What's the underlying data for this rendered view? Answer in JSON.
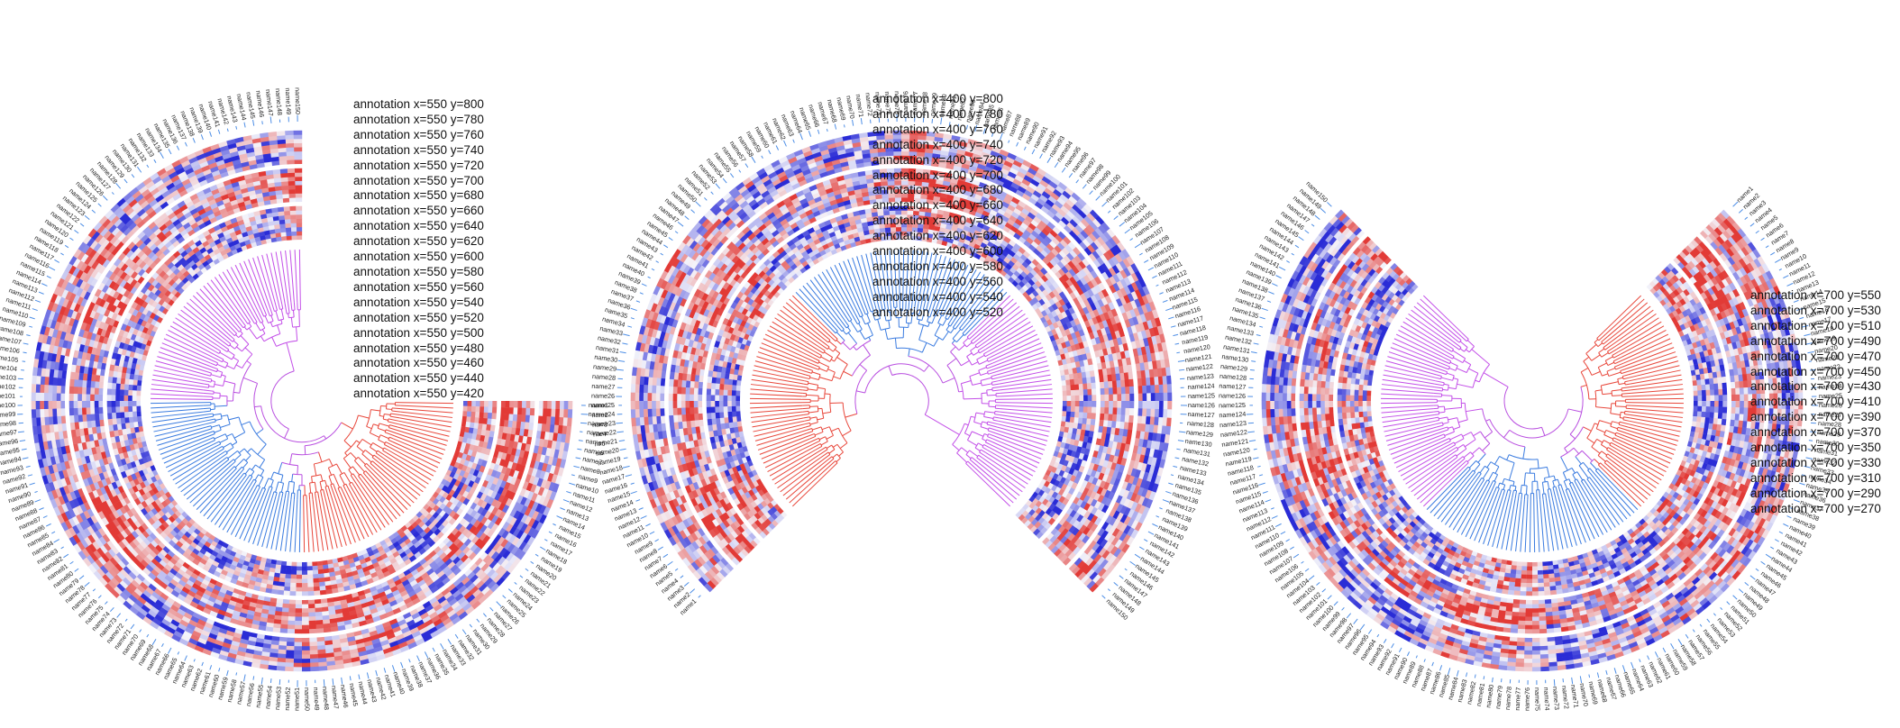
{
  "colors": {
    "cluster_purple": "#c34fe8",
    "cluster_blue": "#3a7be0",
    "cluster_red": "#e8473b",
    "connector_magenta": "#b94fe0",
    "heat_low": "#2a2cd6",
    "heat_mid": "#f4f4fa",
    "heat_high": "#e23a36",
    "annotation_bar": "#4d8ee6",
    "label_text": "#222222"
  },
  "label_prefix": "name",
  "panels": [
    {
      "id": "gap-top-right",
      "annotations": [
        "annotation x=550 y=800",
        "annotation x=550 y=780",
        "annotation x=550 y=760",
        "annotation x=550 y=740",
        "annotation x=550 y=720",
        "annotation x=550 y=700",
        "annotation x=550 y=680",
        "annotation x=550 y=660",
        "annotation x=550 y=640",
        "annotation x=550 y=620",
        "annotation x=550 y=600",
        "annotation x=550 y=580",
        "annotation x=550 y=560",
        "annotation x=550 y=540",
        "annotation x=550 y=520",
        "annotation x=550 y=500",
        "annotation x=550 y=480",
        "annotation x=550 y=460",
        "annotation x=550 y=440",
        "annotation x=550 y=420"
      ],
      "leaf_labels": [
        "name1",
        "name2",
        "name3",
        "name4",
        "name5",
        "name6",
        "name7",
        "name8",
        "name9",
        "name10",
        "name11",
        "name12",
        "name13",
        "name14",
        "name15",
        "name16",
        "name17",
        "name18",
        "name19",
        "name20",
        "name21",
        "name22",
        "name23",
        "name24",
        "name25",
        "name26",
        "name27",
        "name28",
        "name29",
        "name30",
        "name31",
        "name32",
        "name33",
        "name34",
        "name35",
        "name36",
        "name37",
        "name38",
        "name39",
        "name40",
        "name41",
        "name42",
        "name43",
        "name44",
        "name45",
        "name46",
        "name47",
        "name48",
        "name49",
        "name50",
        "name51",
        "name52",
        "name53",
        "name54",
        "name55",
        "name56",
        "name57",
        "name58",
        "name59",
        "name60",
        "name61",
        "name62",
        "name63",
        "name64",
        "name65",
        "name66",
        "name67",
        "name68",
        "name69",
        "name70",
        "name71",
        "name72",
        "name73",
        "name74",
        "name75",
        "name76",
        "name77",
        "name78",
        "name79",
        "name80",
        "name81",
        "name82",
        "name83",
        "name84",
        "name85",
        "name86",
        "name87",
        "name88",
        "name89",
        "name90",
        "name91",
        "name92",
        "name93",
        "name94",
        "name95",
        "name96",
        "name97",
        "name98",
        "name99",
        "name100",
        "name101",
        "name102",
        "name103",
        "name104",
        "name105",
        "name106",
        "name107",
        "name108",
        "name109",
        "name110",
        "name111",
        "name112",
        "name113",
        "name114",
        "name115",
        "name116",
        "name117",
        "name118",
        "name119",
        "name120",
        "name121",
        "name122",
        "name123",
        "name124",
        "name125",
        "name126",
        "name127",
        "name128",
        "name129",
        "name130",
        "name131",
        "name132",
        "name133",
        "name134",
        "name135",
        "name136",
        "name137",
        "name138",
        "name139",
        "name140",
        "name141",
        "name142",
        "name143",
        "name144",
        "name145",
        "name146",
        "name147",
        "name148",
        "name149",
        "name150"
      ]
    },
    {
      "id": "gap-top",
      "annotations": [
        "annotation x=400 y=800",
        "annotation x=400 y=780",
        "annotation x=400 y=760",
        "annotation x=400 y=740",
        "annotation x=400 y=720",
        "annotation x=400 y=700",
        "annotation x=400 y=680",
        "annotation x=400 y=660",
        "annotation x=400 y=640",
        "annotation x=400 y=620",
        "annotation x=400 y=600",
        "annotation x=400 y=580",
        "annotation x=400 y=560",
        "annotation x=400 y=540",
        "annotation x=400 y=520"
      ],
      "leaf_labels": [
        "name1",
        "name2",
        "name3",
        "name4",
        "name5",
        "name6",
        "name7",
        "name8",
        "name9",
        "name10",
        "name11",
        "name12",
        "name13",
        "name14",
        "name15",
        "name16",
        "name17",
        "name18",
        "name19",
        "name20",
        "name21",
        "name22",
        "name23",
        "name24",
        "name25",
        "name26",
        "name27",
        "name28",
        "name29",
        "name30",
        "name31",
        "name32",
        "name33",
        "name34",
        "name35",
        "name36",
        "name37",
        "name38",
        "name39",
        "name40",
        "name41",
        "name42",
        "name43",
        "name44",
        "name45",
        "name46",
        "name47",
        "name48",
        "name49",
        "name50",
        "name51",
        "name52",
        "name53",
        "name54",
        "name55",
        "name56",
        "name57",
        "name58",
        "name59",
        "name60",
        "name61",
        "name62",
        "name63",
        "name64",
        "name65",
        "name66",
        "name67",
        "name68",
        "name69",
        "name70",
        "name71",
        "name72",
        "name73",
        "name74",
        "name75",
        "name76",
        "name77",
        "name78",
        "name79",
        "name80",
        "name81",
        "name82",
        "name83",
        "name84",
        "name85",
        "name86",
        "name87",
        "name88",
        "name89",
        "name90",
        "name91",
        "name92",
        "name93",
        "name94",
        "name95",
        "name96",
        "name97",
        "name98",
        "name99",
        "name100",
        "name101",
        "name102",
        "name103",
        "name104",
        "name105",
        "name106",
        "name107",
        "name108",
        "name109",
        "name110",
        "name111",
        "name112",
        "name113",
        "name114",
        "name115",
        "name116",
        "name117",
        "name118",
        "name119",
        "name120",
        "name121",
        "name122",
        "name123",
        "name124",
        "name125",
        "name126",
        "name127",
        "name128",
        "name129",
        "name130",
        "name131",
        "name132",
        "name133",
        "name134",
        "name135",
        "name136",
        "name137",
        "name138",
        "name139",
        "name140",
        "name141",
        "name142",
        "name143",
        "name144",
        "name145",
        "name146",
        "name147",
        "name148",
        "name149",
        "name150"
      ]
    },
    {
      "id": "gap-right",
      "annotations": [
        "annotation x=700 y=550",
        "annotation x=700 y=530",
        "annotation x=700 y=510",
        "annotation x=700 y=490",
        "annotation x=700 y=470",
        "annotation x=700 y=450",
        "annotation x=700 y=430",
        "annotation x=700 y=410",
        "annotation x=700 y=390",
        "annotation x=700 y=370",
        "annotation x=700 y=350",
        "annotation x=700 y=330",
        "annotation x=700 y=310",
        "annotation x=700 y=290",
        "annotation x=700 y=270"
      ],
      "leaf_labels": [
        "name1",
        "name2",
        "name3",
        "name4",
        "name5",
        "name6",
        "name7",
        "name8",
        "name9",
        "name10",
        "name11",
        "name12",
        "name13",
        "name14",
        "name15",
        "name16",
        "name17",
        "name18",
        "name19",
        "name20",
        "name21",
        "name22",
        "name23",
        "name24",
        "name25",
        "name26",
        "name27",
        "name28",
        "name29",
        "name30",
        "name31",
        "name32",
        "name33",
        "name34",
        "name35",
        "name36",
        "name37",
        "name38",
        "name39",
        "name40",
        "name41",
        "name42",
        "name43",
        "name44",
        "name45",
        "name46",
        "name47",
        "name48",
        "name49",
        "name50",
        "name51",
        "name52",
        "name53",
        "name54",
        "name55",
        "name56",
        "name57",
        "name58",
        "name59",
        "name60",
        "name61",
        "name62",
        "name63",
        "name64",
        "name65",
        "name66",
        "name67",
        "name68",
        "name69",
        "name70",
        "name71",
        "name72",
        "name73",
        "name74",
        "name75",
        "name76",
        "name77",
        "name78",
        "name79",
        "name80",
        "name81",
        "name82",
        "name83",
        "name84",
        "name85",
        "name86",
        "name87",
        "name88",
        "name89",
        "name90",
        "name91",
        "name92",
        "name93",
        "name94",
        "name95",
        "name96",
        "name97",
        "name98",
        "name99",
        "name100",
        "name101",
        "name102",
        "name103",
        "name104",
        "name105",
        "name106",
        "name107",
        "name108",
        "name109",
        "name110",
        "name111",
        "name112",
        "name113",
        "name114",
        "name115",
        "name116",
        "name117",
        "name118",
        "name119",
        "name120",
        "name121",
        "name122",
        "name123",
        "name124",
        "name125",
        "name126",
        "name127",
        "name128",
        "name129",
        "name130",
        "name131",
        "name132",
        "name133",
        "name134",
        "name135",
        "name136",
        "name137",
        "name138",
        "name139",
        "name140",
        "name141",
        "name142",
        "name143",
        "name144",
        "name145",
        "name146",
        "name147",
        "name148",
        "name149",
        "name150"
      ]
    }
  ]
}
